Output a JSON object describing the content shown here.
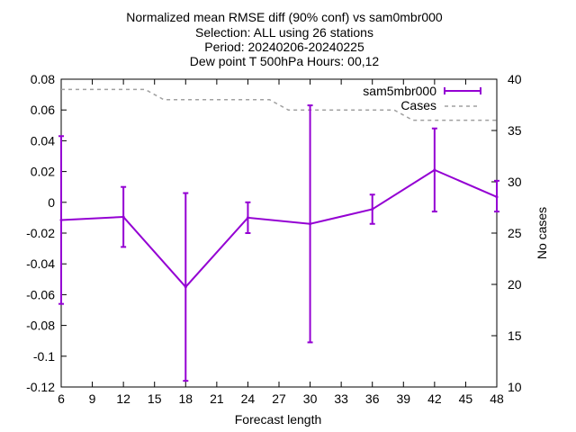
{
  "chart_data": {
    "type": "line",
    "title_lines": [
      "Normalized mean RMSE diff (90% conf) vs sam0mbr000",
      "Selection: ALL using    26 stations",
      "Period: 20240206-20240225",
      "Dew point T 500hPa   Hours: 00,12"
    ],
    "xlabel": "Forecast length",
    "ylabel": "",
    "y2label": "No cases",
    "xlim": [
      6,
      48
    ],
    "ylim": [
      -0.12,
      0.08
    ],
    "y2lim": [
      10,
      40
    ],
    "x_ticks": [
      "6",
      "9",
      "12",
      "15",
      "18",
      "21",
      "24",
      "27",
      "30",
      "33",
      "36",
      "39",
      "42",
      "45",
      "48"
    ],
    "y_ticks": [
      "0.08",
      "0.06",
      "0.04",
      "0.02",
      "0",
      "-0.02",
      "-0.04",
      "-0.06",
      "-0.08",
      "-0.1",
      "-0.12"
    ],
    "y2_ticks": [
      "40",
      "35",
      "30",
      "25",
      "20",
      "15",
      "10"
    ],
    "legend_position": "top-right",
    "series": [
      {
        "name": "sam5mbr000",
        "color": "#9400d3",
        "style": "line with error bars",
        "x": [
          6,
          12,
          18,
          24,
          30,
          36,
          42,
          48
        ],
        "y": [
          -0.0115,
          -0.0095,
          -0.055,
          -0.01,
          -0.014,
          -0.0045,
          0.021,
          0.0035
        ],
        "err_low": [
          -0.066,
          -0.029,
          -0.116,
          -0.02,
          -0.091,
          -0.014,
          -0.006,
          -0.006
        ],
        "err_high": [
          0.043,
          0.01,
          0.006,
          0.0,
          0.063,
          0.005,
          0.048,
          0.014
        ]
      },
      {
        "name": "Cases",
        "color": "#a0a0a0",
        "style": "dashed",
        "axis": "y2",
        "x": [
          6,
          12,
          18,
          24,
          30,
          36,
          42,
          48
        ],
        "y": [
          39,
          39,
          38,
          38,
          37,
          37,
          36,
          36
        ]
      }
    ]
  }
}
